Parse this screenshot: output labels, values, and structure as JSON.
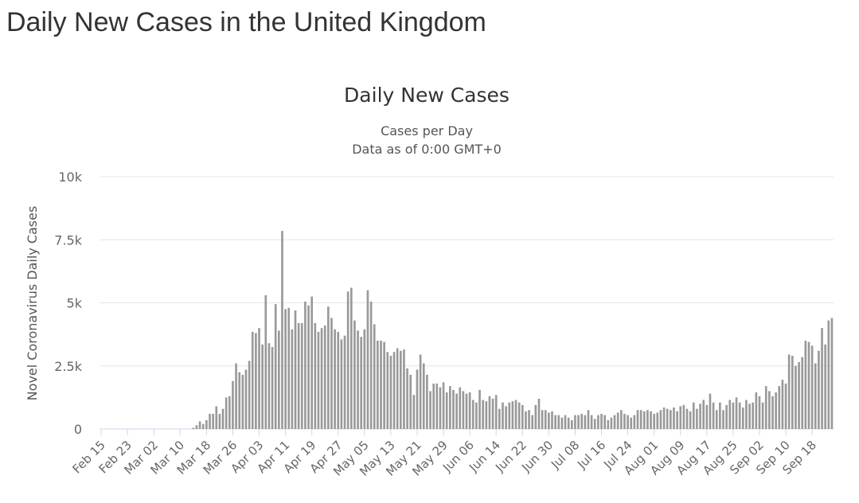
{
  "page": {
    "title": "Daily New Cases in the United Kingdom"
  },
  "chart_data": {
    "type": "bar",
    "title": "Daily New Cases",
    "subtitle_lines": [
      "Cases per Day",
      "Data as of 0:00 GMT+0"
    ],
    "xlabel": "",
    "ylabel": "Novel Coronavirus Daily Cases",
    "ylim": [
      0,
      10000
    ],
    "yticks": [
      {
        "value": 0,
        "label": "0"
      },
      {
        "value": 2500,
        "label": "2.5k"
      },
      {
        "value": 5000,
        "label": "5k"
      },
      {
        "value": 7500,
        "label": "7.5k"
      },
      {
        "value": 10000,
        "label": "10k"
      }
    ],
    "xtick_labels": [
      "Feb 15",
      "Feb 23",
      "Mar 02",
      "Mar 10",
      "Mar 18",
      "Mar 26",
      "Apr 03",
      "Apr 11",
      "Apr 19",
      "Apr 27",
      "May 05",
      "May 13",
      "May 21",
      "May 29",
      "Jun 06",
      "Jun 14",
      "Jun 22",
      "Jun 30",
      "Jul 08",
      "Jul 16",
      "Jul 24",
      "Aug 01",
      "Aug 09",
      "Aug 17",
      "Aug 25",
      "Sep 02",
      "Sep 10",
      "Sep 18"
    ],
    "xtick_every": 8,
    "bar_color": "#999999",
    "grid": true,
    "series": [
      {
        "values": [
          0,
          0,
          0,
          0,
          0,
          0,
          0,
          0,
          0,
          0,
          0,
          0,
          0,
          0,
          0,
          0,
          0,
          0,
          0,
          0,
          0,
          0,
          0,
          0,
          0,
          0,
          0,
          0,
          50,
          150,
          300,
          200,
          350,
          600,
          600,
          900,
          600,
          800,
          1250,
          1300,
          1900,
          2600,
          2250,
          2150,
          2350,
          2700,
          3850,
          3800,
          4000,
          3350,
          5300,
          3400,
          3250,
          4950,
          3900,
          7850,
          4750,
          4800,
          3950,
          4700,
          4200,
          4200,
          5050,
          4900,
          5250,
          4200,
          3850,
          4000,
          4100,
          4850,
          4400,
          3950,
          3850,
          3550,
          3700,
          5450,
          5600,
          4300,
          3900,
          3650,
          3950,
          5500,
          5050,
          4150,
          3500,
          3500,
          3450,
          3050,
          2900,
          3050,
          3200,
          3100,
          3150,
          2400,
          2150,
          1350,
          2350,
          2950,
          2600,
          2150,
          1500,
          1800,
          1800,
          1650,
          1850,
          1450,
          1700,
          1550,
          1400,
          1650,
          1500,
          1400,
          1450,
          1150,
          1050,
          1550,
          1150,
          1100,
          1300,
          1200,
          1350,
          800,
          1050,
          900,
          1050,
          1100,
          1150,
          1050,
          950,
          700,
          750,
          550,
          950,
          1200,
          750,
          750,
          650,
          700,
          550,
          550,
          450,
          550,
          450,
          350,
          550,
          550,
          600,
          550,
          750,
          550,
          400,
          550,
          600,
          550,
          350,
          450,
          550,
          650,
          750,
          600,
          550,
          450,
          550,
          750,
          750,
          700,
          750,
          700,
          600,
          650,
          750,
          850,
          800,
          750,
          850,
          700,
          900,
          950,
          800,
          700,
          1050,
          800,
          1000,
          1150,
          950,
          1400,
          1050,
          750,
          1050,
          750,
          950,
          1150,
          1050,
          1250,
          1050,
          850,
          1150,
          1000,
          1050,
          1450,
          1300,
          1050,
          1700,
          1500,
          1300,
          1450,
          1700,
          1950,
          1800,
          2950,
          2900,
          2500,
          2650,
          2850,
          3500,
          3450,
          3300,
          2600,
          3100,
          4000,
          3350,
          4300,
          4400
        ]
      }
    ]
  }
}
